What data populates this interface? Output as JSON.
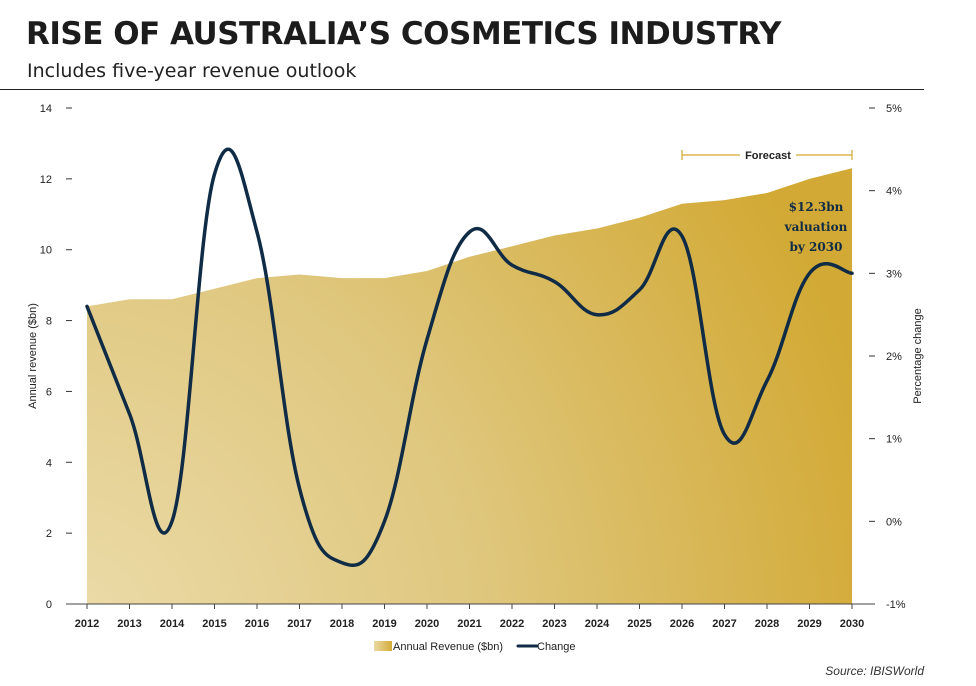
{
  "title": "RISE OF AUSTRALIA’S COSMETICS INDUSTRY",
  "subtitle": "Includes five-year revenue outlook",
  "source": "Source: IBISWorld",
  "colors": {
    "area_light": "#e8d8a4",
    "area_dark": "#d4ac36",
    "line": "#0f2b46",
    "forecast_bracket": "#d2a830"
  },
  "chart_data": {
    "type": "area",
    "x": [
      "2012",
      "2013",
      "2014",
      "2015",
      "2016",
      "2017",
      "2018",
      "2019",
      "2020",
      "2021",
      "2022",
      "2023",
      "2024",
      "2025",
      "2026",
      "2027",
      "2028",
      "2029",
      "2030"
    ],
    "y_left_label": "Annual revenue ($bn)",
    "y_right_label": "Percentage change",
    "y_left_ticks": [
      "0",
      "2",
      "4",
      "6",
      "8",
      "10",
      "12",
      "14"
    ],
    "y_right_ticks": [
      "-1%",
      "0%",
      "1%",
      "2%",
      "3%",
      "4%",
      "5%"
    ],
    "y_left_range": [
      0,
      14
    ],
    "y_right_range": [
      -1,
      5
    ],
    "series": [
      {
        "name": "Annual Revenue ($bn)",
        "type": "area",
        "axis": "left",
        "values": [
          8.4,
          8.6,
          8.6,
          8.9,
          9.2,
          9.3,
          9.2,
          9.2,
          9.4,
          9.8,
          10.1,
          10.4,
          10.6,
          10.9,
          11.3,
          11.4,
          11.6,
          12.0,
          12.3
        ]
      },
      {
        "name": "Change",
        "type": "line",
        "axis": "right",
        "values": [
          2.6,
          1.3,
          0.0,
          4.2,
          3.5,
          0.4,
          -0.5,
          0.0,
          2.2,
          3.5,
          3.1,
          2.9,
          2.5,
          2.8,
          3.45,
          1.05,
          1.7,
          3.0,
          3.0
        ]
      }
    ],
    "forecast_label": "Forecast",
    "forecast_range": [
      "2026",
      "2030"
    ],
    "annotation": [
      "$12.3bn",
      "valuation",
      "by 2030"
    ],
    "grid": false,
    "legend_position": "bottom-center"
  }
}
